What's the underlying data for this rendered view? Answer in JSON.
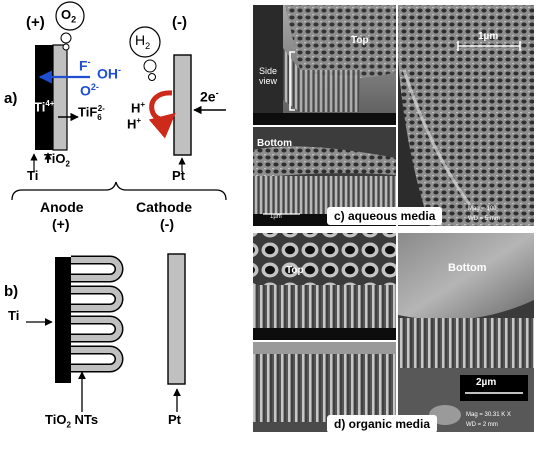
{
  "panel_a": {
    "label": "a)",
    "anode_sign": "(+)",
    "cathode_sign": "(-)",
    "o2": "O",
    "o2_sub": "2",
    "h2": "H",
    "h2_sub": "2",
    "fluoride": "F",
    "fluoride_sup": "-",
    "hydroxide": "OH",
    "hydroxide_sup": "-",
    "oxide": "O",
    "oxide_sup": "2-",
    "ti4": "Ti",
    "ti4_sup": "4+",
    "tif6": "TiF",
    "tif6_sub": "6",
    "tif6_sup": "2-",
    "hplus": "H",
    "hplus_sup": "+",
    "electrons": "2e",
    "electrons_sup": "-",
    "ti": "Ti",
    "tio2": "TiO",
    "tio2_sub": "2",
    "pt": "Pt"
  },
  "panel_b": {
    "label": "b)",
    "anode": "Anode",
    "anode_sign": "(+)",
    "cathode": "Cathode",
    "cathode_sign": "(-)",
    "ti": "Ti",
    "tio2": "TiO",
    "tio2_sub": "2",
    "nts": "NTs",
    "pt": "Pt"
  },
  "sem_c": {
    "top": "Top",
    "side_view": "Side",
    "side_view_2": "view",
    "bottom": "Bottom",
    "scale_top_right": "1µm",
    "scale_bottom_left": "1µm",
    "caption": "c) aqueous media",
    "mag": "Mag = 100",
    "wd": "WD =   5 mm"
  },
  "sem_d": {
    "top": "Top",
    "bottom": "Bottom",
    "scale_bottom_right": "2µm",
    "caption": "d) organic media",
    "mag": "Mag =  30.31 K X",
    "wd": "WD =   2 mm"
  },
  "colors": {
    "ti_metal": "#000000",
    "tio2": "#c0c0c0",
    "ion_blue": "#1f4fd0",
    "arrow_red": "#cc2a1a",
    "caption_bg": "#ffffff"
  }
}
